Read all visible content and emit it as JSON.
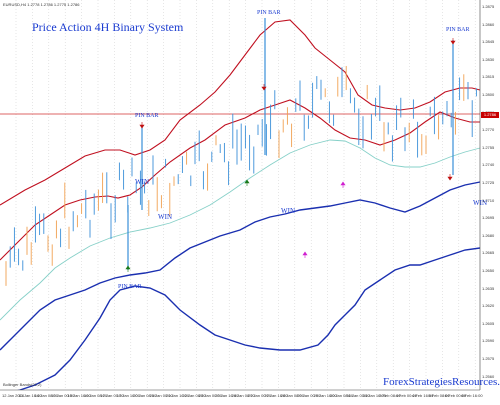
{
  "chart": {
    "symbol_info": "EURUSD,H4  1.2778 1.2786 1.2775 1.2786",
    "title": "Price Action 4H Binary System",
    "footer_info": "Bollinger Bands(20,2)",
    "watermark": "ForexStrategiesResources.com",
    "current_price": "1.2786",
    "colors": {
      "background": "#ffffff",
      "candles": "#3a8fd8",
      "candles_bear": "#f0a050",
      "outer_bands": "#1a2fb0",
      "inner_bands": "#c01020",
      "middle_line": "#86d0c8",
      "horizontal_line": "#d03030",
      "grid": "#c0c0c0",
      "text": "#1a3bd0",
      "arrow_up": "#1a7a1a",
      "arrow_up_magenta": "#d020d0",
      "arrow_down": "#c01010"
    }
  },
  "annotations": {
    "pin_bars": [
      "PIN BAR",
      "PIN BAR",
      "PIN BAR",
      "PIN BAR"
    ],
    "wins": [
      "WIN",
      "WIN",
      "WIN",
      "WIN"
    ]
  },
  "axes": {
    "price_labels": [
      "1.2875",
      "1.2860",
      "1.2845",
      "1.2830",
      "1.2815",
      "1.2800",
      "1.2786",
      "1.2770",
      "1.2755",
      "1.2740",
      "1.2725",
      "1.2710",
      "1.2695",
      "1.2680",
      "1.2665",
      "1.2650",
      "1.2635",
      "1.2620",
      "1.2605",
      "1.2590",
      "1.2575",
      "1.2560"
    ],
    "date_labels": [
      "12 Jan 2014",
      "13 Jan 16:00",
      "14 Jan 08:00",
      "15 Jan 00:00",
      "15 Jan 16:00",
      "16 Jan 08:00",
      "17 Jan 00:00",
      "17 Jan 16:00",
      "20 Jan 08:00",
      "21 Jan 00:00",
      "21 Jan 16:00",
      "22 Jan 08:00",
      "23 Jan 00:00",
      "23 Jan 16:00",
      "24 Jan 08:00",
      "27 Jan 00:00",
      "27 Jan 16:00",
      "28 Jan 08:00",
      "29 Jan 00:00",
      "29 Jan 16:00",
      "30 Jan 08:00",
      "31 Jan 00:00",
      "31 Jan 16:00",
      "3 Feb 08:00",
      "4 Feb 00:00",
      "4 Feb 16:00",
      "5 Feb 08:00",
      "6 Feb 00:00",
      "6 Feb 16:00"
    ]
  }
}
